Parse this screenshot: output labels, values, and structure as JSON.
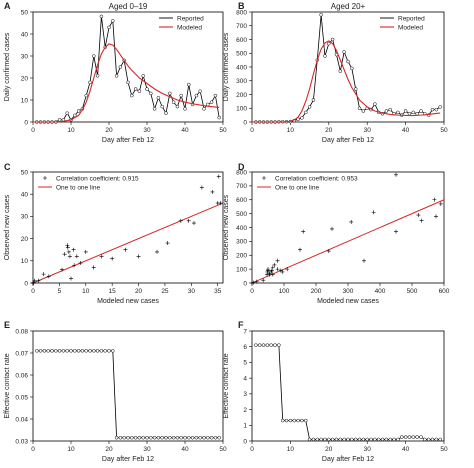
{
  "panel_labels": [
    "A",
    "B",
    "C",
    "D",
    "E",
    "F"
  ],
  "colors": {
    "observed": "#000000",
    "model": "#d62728"
  },
  "chart_data": [
    {
      "type": "line",
      "title": "Aged 0–19",
      "xlabel": "Day after Feb 12",
      "ylabel": "Daily confirmed cases",
      "xlim": [
        0,
        50
      ],
      "ylim": [
        0,
        50
      ],
      "xticks": [
        0,
        10,
        20,
        30,
        40,
        50
      ],
      "yticks": [
        0,
        10,
        20,
        30,
        40,
        50
      ],
      "legend": [
        "Reported",
        "Modeled"
      ],
      "legend_position": "top-right",
      "series": [
        {
          "name": "Reported",
          "x": [
            1,
            2,
            3,
            4,
            5,
            6,
            7,
            8,
            9,
            10,
            11,
            12,
            13,
            14,
            15,
            16,
            17,
            18,
            19,
            20,
            21,
            22,
            23,
            24,
            25,
            26,
            27,
            28,
            29,
            30,
            31,
            32,
            33,
            34,
            35,
            36,
            37,
            38,
            39,
            40,
            41,
            42,
            43,
            44,
            45,
            46,
            47,
            48,
            49
          ],
          "y": [
            0,
            0,
            0,
            0,
            0,
            0,
            1,
            1,
            4,
            1,
            3,
            5,
            6,
            12,
            18,
            30,
            21,
            48,
            34,
            43,
            46,
            21,
            25,
            28,
            18,
            12,
            15,
            14,
            21,
            15,
            13,
            6,
            11,
            7,
            4,
            13,
            9,
            7,
            12,
            6,
            17,
            8,
            12,
            14,
            6,
            8,
            9,
            12,
            2
          ]
        },
        {
          "name": "Modeled",
          "x": [
            0,
            2,
            4,
            6,
            8,
            10,
            11,
            12,
            13,
            14,
            15,
            16,
            17,
            18,
            19,
            20,
            21,
            22,
            23,
            24,
            25,
            26,
            28,
            30,
            32,
            34,
            36,
            38,
            40,
            42,
            44,
            46,
            48,
            49
          ],
          "y": [
            0,
            0,
            0,
            0.1,
            0.3,
            1,
            2,
            3,
            5.5,
            9,
            14,
            20,
            26,
            31,
            34,
            35.5,
            35,
            33,
            30.5,
            28,
            25.5,
            23.5,
            20,
            17.5,
            15,
            13,
            11.5,
            10,
            9,
            8.3,
            7.7,
            7.2,
            6.8,
            6.6
          ]
        }
      ]
    },
    {
      "type": "line",
      "title": "Aged 20+",
      "xlabel": "Day after Feb 12",
      "ylabel": "Daily confirmed cases",
      "xlim": [
        0,
        50
      ],
      "ylim": [
        0,
        800
      ],
      "xticks": [
        0,
        10,
        20,
        30,
        40,
        50
      ],
      "yticks": [
        0,
        100,
        200,
        300,
        400,
        500,
        600,
        700,
        800
      ],
      "legend": [
        "Reported",
        "Modeled"
      ],
      "legend_position": "top-right",
      "series": [
        {
          "name": "Reported",
          "x": [
            1,
            2,
            3,
            4,
            5,
            6,
            7,
            8,
            9,
            10,
            11,
            12,
            13,
            14,
            15,
            16,
            17,
            18,
            19,
            20,
            21,
            22,
            23,
            24,
            25,
            26,
            27,
            28,
            29,
            30,
            31,
            32,
            33,
            34,
            35,
            36,
            37,
            38,
            39,
            40,
            41,
            42,
            43,
            44,
            45,
            46,
            47,
            48,
            49
          ],
          "y": [
            0,
            1,
            0,
            0,
            1,
            0,
            2,
            2,
            2,
            3,
            10,
            20,
            30,
            70,
            110,
            160,
            450,
            780,
            480,
            570,
            600,
            490,
            370,
            510,
            440,
            390,
            240,
            100,
            80,
            100,
            90,
            130,
            70,
            60,
            80,
            90,
            60,
            70,
            50,
            80,
            60,
            70,
            60,
            80,
            60,
            50,
            90,
            90,
            110
          ]
        },
        {
          "name": "Modeled",
          "x": [
            0,
            4,
            8,
            10,
            11,
            12,
            13,
            14,
            15,
            16,
            17,
            18,
            19,
            20,
            21,
            22,
            23,
            24,
            25,
            26,
            28,
            30,
            32,
            34,
            36,
            38,
            40,
            42,
            44,
            46,
            48,
            49
          ],
          "y": [
            0,
            0,
            0,
            5,
            15,
            35,
            80,
            150,
            240,
            350,
            450,
            530,
            575,
            590,
            570,
            520,
            450,
            380,
            310,
            250,
            160,
            110,
            80,
            65,
            55,
            50,
            48,
            47,
            50,
            55,
            62,
            65
          ]
        }
      ]
    },
    {
      "type": "scatter",
      "xlabel": "Modeled new cases",
      "ylabel": "Observed new cases",
      "xlim": [
        0,
        36
      ],
      "ylim": [
        0,
        50
      ],
      "xticks": [
        0,
        5,
        10,
        15,
        20,
        25,
        30,
        35
      ],
      "yticks": [
        0,
        10,
        20,
        30,
        40,
        50
      ],
      "legend": [
        "Correlation coefficient: 0.915",
        "One to one line"
      ],
      "legend_position": "top-left",
      "series": [
        {
          "name": "Correlation coefficient: 0.915",
          "x": [
            0,
            0,
            0.1,
            0.3,
            1,
            2,
            3,
            5.5,
            6,
            6.5,
            6.6,
            6.8,
            7,
            7.2,
            7.7,
            7.8,
            8.3,
            9,
            10,
            11.5,
            13,
            15,
            17.5,
            20,
            23.5,
            25.5,
            28,
            29.5,
            30.5,
            32,
            34,
            35,
            35.5,
            35.2
          ],
          "y": [
            0,
            0,
            0,
            1,
            1,
            4,
            3,
            6,
            13,
            17,
            16,
            14,
            12,
            2,
            15,
            8,
            12,
            9,
            14,
            7,
            12,
            11,
            15,
            12,
            14,
            18,
            28,
            28,
            27,
            43,
            41,
            36,
            36,
            48
          ]
        },
        {
          "name": "One to one line",
          "x": [
            0,
            36
          ],
          "y": [
            0,
            36
          ]
        }
      ]
    },
    {
      "type": "scatter",
      "xlabel": "Modeled new cases",
      "ylabel": "Observed new cases",
      "xlim": [
        0,
        600
      ],
      "ylim": [
        0,
        800
      ],
      "xticks": [
        0,
        100,
        200,
        300,
        400,
        500,
        600
      ],
      "yticks": [
        0,
        100,
        200,
        300,
        400,
        500,
        600,
        700,
        800
      ],
      "legend": [
        "Correlation coefficient: 0.953",
        "One to one line"
      ],
      "legend_position": "top-left",
      "series": [
        {
          "name": "Correlation coefficient: 0.953",
          "x": [
            0,
            5,
            15,
            35,
            47,
            48,
            50,
            50,
            55,
            55,
            60,
            62,
            65,
            65,
            70,
            80,
            80,
            90,
            95,
            110,
            150,
            160,
            240,
            250,
            310,
            350,
            380,
            450,
            450,
            520,
            530,
            570,
            575,
            590
          ],
          "y": [
            0,
            3,
            10,
            20,
            60,
            80,
            90,
            100,
            60,
            70,
            80,
            90,
            60,
            110,
            130,
            100,
            160,
            90,
            80,
            100,
            240,
            370,
            230,
            390,
            440,
            160,
            510,
            780,
            370,
            490,
            450,
            600,
            480,
            570
          ]
        },
        {
          "name": "One to one line",
          "x": [
            0,
            600
          ],
          "y": [
            0,
            600
          ]
        }
      ]
    },
    {
      "type": "line",
      "xlabel": "Day after Feb 12",
      "ylabel": "Effective contact rate",
      "xlim": [
        0,
        50
      ],
      "ylim": [
        0.03,
        0.08
      ],
      "xticks": [
        0,
        10,
        20,
        30,
        40,
        50
      ],
      "yticks": [
        0.03,
        0.04,
        0.05,
        0.06,
        0.07,
        0.08
      ],
      "series": [
        {
          "name": "",
          "x": [
            1,
            2,
            3,
            4,
            5,
            6,
            7,
            8,
            9,
            10,
            11,
            12,
            13,
            14,
            15,
            16,
            17,
            18,
            19,
            20,
            21,
            22,
            23,
            24,
            25,
            26,
            27,
            28,
            29,
            30,
            31,
            32,
            33,
            34,
            35,
            36,
            37,
            38,
            39,
            40,
            41,
            42,
            43,
            44,
            45,
            46,
            47,
            48,
            49
          ],
          "y": [
            0.071,
            0.071,
            0.071,
            0.071,
            0.071,
            0.071,
            0.071,
            0.071,
            0.071,
            0.071,
            0.071,
            0.071,
            0.071,
            0.071,
            0.071,
            0.071,
            0.071,
            0.071,
            0.071,
            0.071,
            0.071,
            0.0315,
            0.0315,
            0.0315,
            0.0315,
            0.0315,
            0.0315,
            0.0315,
            0.0315,
            0.0315,
            0.0315,
            0.0315,
            0.0315,
            0.0315,
            0.0315,
            0.0315,
            0.0315,
            0.0315,
            0.0315,
            0.0315,
            0.0315,
            0.0315,
            0.0315,
            0.0315,
            0.0315,
            0.0315,
            0.0315,
            0.0315,
            0.0315
          ]
        }
      ]
    },
    {
      "type": "line",
      "xlabel": "Day after Feb 12",
      "ylabel": "Effective contact rate",
      "xlim": [
        0,
        50
      ],
      "ylim": [
        0,
        7
      ],
      "xticks": [
        0,
        10,
        20,
        30,
        40,
        50
      ],
      "yticks": [
        0,
        1,
        2,
        3,
        4,
        5,
        6,
        7
      ],
      "series": [
        {
          "name": "",
          "x": [
            1,
            2,
            3,
            4,
            5,
            6,
            7,
            8,
            9,
            10,
            11,
            12,
            13,
            14,
            15,
            16,
            17,
            18,
            19,
            20,
            21,
            22,
            23,
            24,
            25,
            26,
            27,
            28,
            29,
            30,
            31,
            32,
            33,
            34,
            35,
            36,
            37,
            38,
            39,
            40,
            41,
            42,
            43,
            44,
            45,
            46,
            47,
            48,
            49
          ],
          "y": [
            6.1,
            6.1,
            6.1,
            6.1,
            6.1,
            6.1,
            6.1,
            1.3,
            1.3,
            1.3,
            1.3,
            1.3,
            1.3,
            1.3,
            0.1,
            0.1,
            0.1,
            0.1,
            0.1,
            0.1,
            0.1,
            0.1,
            0.1,
            0.1,
            0.1,
            0.1,
            0.1,
            0.1,
            0.1,
            0.1,
            0.1,
            0.1,
            0.1,
            0.1,
            0.1,
            0.1,
            0.1,
            0.1,
            0.25,
            0.25,
            0.25,
            0.25,
            0.25,
            0.25,
            0.1,
            0.1,
            0.1,
            0.1,
            0.1
          ]
        }
      ]
    }
  ]
}
